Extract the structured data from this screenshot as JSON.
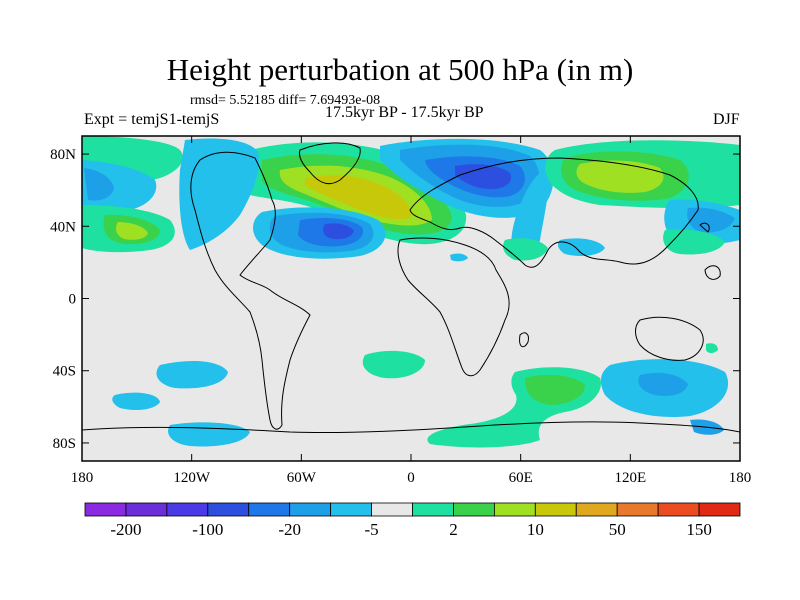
{
  "title": "Height perturbation at 500 hPa (in m)",
  "stats": "rmsd= 5.52185 diff= 7.69493e-08",
  "experiment": "Expt = temjS1-temjS",
  "period": "17.5kyr BP - 17.5kyr BP",
  "season": "DJF",
  "axes": {
    "lon_ticks": [
      "180",
      "120W",
      "60W",
      "0",
      "60E",
      "120E",
      "180"
    ],
    "lat_ticks": [
      "80N",
      "40N",
      "0",
      "40S",
      "80S"
    ]
  },
  "colorbar": {
    "colors": [
      "#8a2be2",
      "#6a2fd8",
      "#4b3be6",
      "#2d4fe0",
      "#1e78e8",
      "#1ea0e8",
      "#22c0ea",
      "#e8e8e8",
      "#1ee0a0",
      "#3ad24a",
      "#a0e022",
      "#c8c80a",
      "#e0a81e",
      "#e8782a",
      "#ec4c22",
      "#e02a16"
    ],
    "labels": [
      "-200",
      "-100",
      "-20",
      "-5",
      "2",
      "10",
      "50",
      "150"
    ]
  }
}
